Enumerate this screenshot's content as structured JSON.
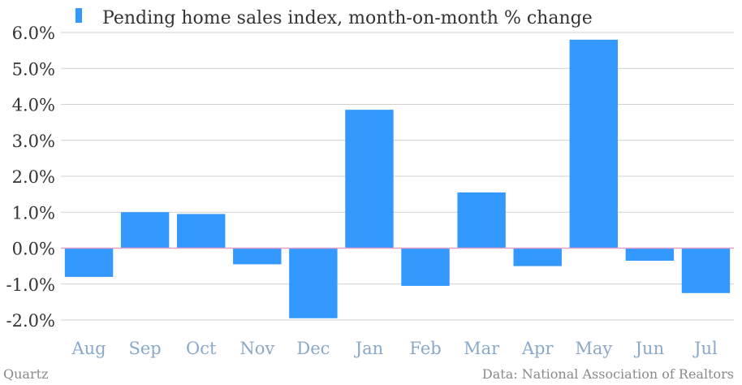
{
  "chart_data": {
    "type": "bar",
    "categories": [
      "Aug",
      "Sep",
      "Oct",
      "Nov",
      "Dec",
      "Jan",
      "Feb",
      "Mar",
      "Apr",
      "May",
      "Jun",
      "Jul"
    ],
    "series": [
      {
        "name": "Pending home sales index, month-on-month % change",
        "values": [
          -0.8,
          1.0,
          0.95,
          -0.45,
          -1.95,
          3.85,
          -1.05,
          1.55,
          -0.5,
          5.8,
          -0.35,
          -1.25
        ],
        "color": "#3399ff"
      }
    ],
    "y_ticks": [
      "6.0%",
      "5.0%",
      "4.0%",
      "3.0%",
      "2.0%",
      "1.0%",
      "0.0%",
      "-1.0%",
      "-2.0%"
    ],
    "ylim": [
      -2.0,
      6.0
    ],
    "grid": true,
    "zero_line_color": "#e0a0c8",
    "legend_position": "top-left"
  },
  "footer": {
    "source_left": "Quartz",
    "source_right": "Data: National Association of Realtors"
  }
}
